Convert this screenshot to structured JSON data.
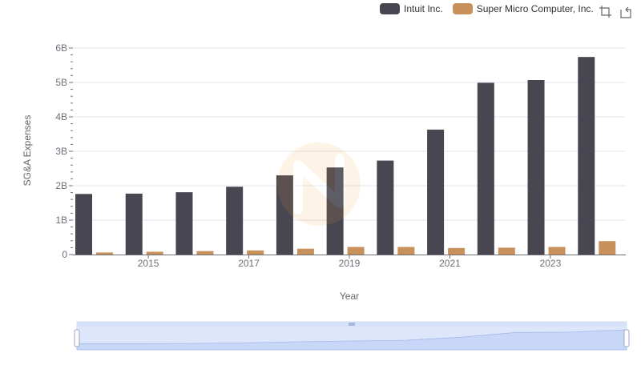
{
  "chart_data": {
    "type": "bar",
    "title": "",
    "xlabel": "Year",
    "ylabel": "SG&A Expenses",
    "ylim": [
      0,
      6000000000
    ],
    "y_ticks": [
      "0",
      "1B",
      "2B",
      "3B",
      "4B",
      "5B",
      "6B"
    ],
    "categories": [
      "2014",
      "2015",
      "2016",
      "2017",
      "2018",
      "2019",
      "2020",
      "2021",
      "2022",
      "2023",
      "2024"
    ],
    "x_tick_labels": [
      "2015",
      "2017",
      "2019",
      "2021",
      "2023"
    ],
    "series": [
      {
        "name": "Intuit Inc.",
        "color": "#474651",
        "values": [
          1760000000,
          1770000000,
          1810000000,
          1970000000,
          2300000000,
          2530000000,
          2730000000,
          3630000000,
          4990000000,
          5070000000,
          5740000000
        ]
      },
      {
        "name": "Super Micro Computer, Inc.",
        "color": "#c8915b",
        "values": [
          60000000,
          80000000,
          100000000,
          120000000,
          170000000,
          220000000,
          220000000,
          190000000,
          200000000,
          220000000,
          390000000
        ]
      }
    ],
    "legend_position": "top-right",
    "grid": true
  },
  "legend": {
    "items": [
      "Intuit Inc.",
      "Super Micro Computer, Inc."
    ]
  },
  "toolbar": {
    "zoom_icon": "crop-zoom-icon",
    "reset_icon": "restore-icon"
  }
}
